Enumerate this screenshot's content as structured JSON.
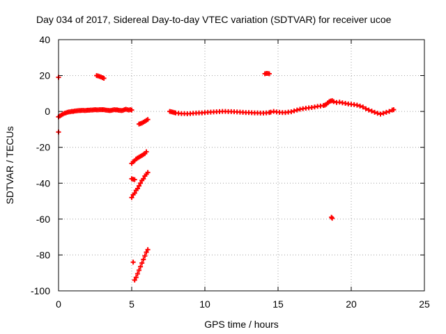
{
  "chart_data": {
    "type": "scatter",
    "title": "Day 034 of 2017, Sidereal Day-to-day VTEC variation (SDTVAR) for receiver ucoe",
    "xlabel": "GPS time / hours",
    "ylabel": "SDTVAR / TECUs",
    "xlim": [
      0,
      25
    ],
    "ylim": [
      -100,
      40
    ],
    "xticks": [
      0,
      5,
      10,
      15,
      20,
      25
    ],
    "yticks": [
      -100,
      -80,
      -60,
      -40,
      -20,
      0,
      20,
      40
    ],
    "grid": true,
    "marker_color": "#ff0000",
    "series": [
      {
        "name": "SDTVAR",
        "points": [
          [
            0.0,
            -11.5
          ],
          [
            0.0,
            19.0
          ],
          [
            0.0,
            -3.0
          ],
          [
            0.1,
            -2.5
          ],
          [
            0.2,
            -2.0
          ],
          [
            0.3,
            -1.5
          ],
          [
            0.4,
            -1.0
          ],
          [
            0.5,
            -0.8
          ],
          [
            0.6,
            -0.5
          ],
          [
            0.7,
            -0.3
          ],
          [
            0.8,
            -0.2
          ],
          [
            0.9,
            0.0
          ],
          [
            1.0,
            0.0
          ],
          [
            1.1,
            0.2
          ],
          [
            1.2,
            0.3
          ],
          [
            1.3,
            0.4
          ],
          [
            1.4,
            0.5
          ],
          [
            1.5,
            0.5
          ],
          [
            1.6,
            0.6
          ],
          [
            1.7,
            0.6
          ],
          [
            1.8,
            0.5
          ],
          [
            1.9,
            0.6
          ],
          [
            2.0,
            0.7
          ],
          [
            2.1,
            0.7
          ],
          [
            2.2,
            0.8
          ],
          [
            2.3,
            0.8
          ],
          [
            2.4,
            0.9
          ],
          [
            2.5,
            1.0
          ],
          [
            2.6,
            0.9
          ],
          [
            2.7,
            0.9
          ],
          [
            2.8,
            1.0
          ],
          [
            2.9,
            1.0
          ],
          [
            3.0,
            1.0
          ],
          [
            3.1,
            1.0
          ],
          [
            3.2,
            0.8
          ],
          [
            3.3,
            0.7
          ],
          [
            3.4,
            0.6
          ],
          [
            3.5,
            0.5
          ],
          [
            3.6,
            0.6
          ],
          [
            3.7,
            0.8
          ],
          [
            3.8,
            1.0
          ],
          [
            3.9,
            0.9
          ],
          [
            4.0,
            0.9
          ],
          [
            4.1,
            0.7
          ],
          [
            4.2,
            0.6
          ],
          [
            4.3,
            0.5
          ],
          [
            4.4,
            0.6
          ],
          [
            4.5,
            1.0
          ],
          [
            4.6,
            1.2
          ],
          [
            4.7,
            1.0
          ],
          [
            4.8,
            0.8
          ],
          [
            4.9,
            1.0
          ],
          [
            5.0,
            0.8
          ],
          [
            2.6,
            20.0
          ],
          [
            2.7,
            19.8
          ],
          [
            2.8,
            19.5
          ],
          [
            2.9,
            19.2
          ],
          [
            3.0,
            18.8
          ],
          [
            3.1,
            18.5
          ],
          [
            5.0,
            -37.5
          ],
          [
            5.1,
            -37.8
          ],
          [
            5.2,
            -38.0
          ],
          [
            5.0,
            -29.0
          ],
          [
            5.1,
            -28.0
          ],
          [
            5.2,
            -27.5
          ],
          [
            5.3,
            -26.5
          ],
          [
            5.4,
            -26.0
          ],
          [
            5.5,
            -25.5
          ],
          [
            5.6,
            -25.0
          ],
          [
            5.7,
            -24.5
          ],
          [
            5.8,
            -24.0
          ],
          [
            5.9,
            -23.5
          ],
          [
            6.0,
            -22.5
          ],
          [
            5.0,
            -48.0
          ],
          [
            5.1,
            -46.5
          ],
          [
            5.2,
            -45.5
          ],
          [
            5.3,
            -44.0
          ],
          [
            5.4,
            -43.0
          ],
          [
            5.5,
            -41.5
          ],
          [
            5.6,
            -40.0
          ],
          [
            5.7,
            -38.5
          ],
          [
            5.8,
            -37.5
          ],
          [
            5.9,
            -36.0
          ],
          [
            6.0,
            -35.0
          ],
          [
            6.1,
            -34.0
          ],
          [
            5.1,
            -84.0
          ],
          [
            5.2,
            -94.0
          ],
          [
            5.3,
            -92.5
          ],
          [
            5.4,
            -90.5
          ],
          [
            5.5,
            -88.5
          ],
          [
            5.6,
            -86.5
          ],
          [
            5.7,
            -84.5
          ],
          [
            5.8,
            -82.5
          ],
          [
            5.9,
            -80.5
          ],
          [
            6.0,
            -78.5
          ],
          [
            6.1,
            -77.0
          ],
          [
            5.5,
            -7.0
          ],
          [
            5.6,
            -6.8
          ],
          [
            5.7,
            -6.5
          ],
          [
            5.8,
            -6.0
          ],
          [
            5.9,
            -5.5
          ],
          [
            6.0,
            -5.0
          ],
          [
            6.1,
            -4.5
          ],
          [
            7.6,
            0.0
          ],
          [
            7.7,
            -0.2
          ],
          [
            7.8,
            -0.4
          ],
          [
            7.9,
            -0.6
          ],
          [
            8.0,
            -0.8
          ],
          [
            8.2,
            -1.0
          ],
          [
            8.4,
            -1.2
          ],
          [
            8.6,
            -1.2
          ],
          [
            8.8,
            -1.3
          ],
          [
            9.0,
            -1.2
          ],
          [
            9.2,
            -1.0
          ],
          [
            9.4,
            -0.9
          ],
          [
            9.6,
            -0.8
          ],
          [
            9.8,
            -0.8
          ],
          [
            10.0,
            -0.6
          ],
          [
            10.2,
            -0.5
          ],
          [
            10.4,
            -0.4
          ],
          [
            10.6,
            -0.3
          ],
          [
            10.8,
            -0.2
          ],
          [
            11.0,
            -0.1
          ],
          [
            11.2,
            0.0
          ],
          [
            11.4,
            0.0
          ],
          [
            11.6,
            -0.1
          ],
          [
            11.8,
            -0.1
          ],
          [
            12.0,
            -0.2
          ],
          [
            12.2,
            -0.3
          ],
          [
            12.4,
            -0.4
          ],
          [
            12.6,
            -0.5
          ],
          [
            12.8,
            -0.6
          ],
          [
            13.0,
            -0.6
          ],
          [
            13.2,
            -0.7
          ],
          [
            13.4,
            -0.8
          ],
          [
            13.6,
            -0.8
          ],
          [
            13.8,
            -0.9
          ],
          [
            14.0,
            -0.9
          ],
          [
            14.2,
            -0.8
          ],
          [
            14.4,
            -0.6
          ],
          [
            14.5,
            -0.4
          ],
          [
            14.1,
            21.0
          ],
          [
            14.2,
            21.2
          ],
          [
            14.3,
            21.2
          ],
          [
            14.4,
            21.0
          ],
          [
            14.7,
            0.0
          ],
          [
            14.9,
            -0.3
          ],
          [
            15.1,
            -0.5
          ],
          [
            15.3,
            -0.6
          ],
          [
            15.5,
            -0.6
          ],
          [
            15.7,
            -0.4
          ],
          [
            15.9,
            -0.2
          ],
          [
            16.1,
            0.3
          ],
          [
            16.3,
            0.8
          ],
          [
            16.5,
            1.2
          ],
          [
            16.7,
            1.5
          ],
          [
            16.9,
            1.8
          ],
          [
            17.1,
            2.0
          ],
          [
            17.3,
            2.2
          ],
          [
            17.5,
            2.5
          ],
          [
            17.7,
            2.8
          ],
          [
            17.9,
            3.0
          ],
          [
            18.1,
            3.3
          ],
          [
            18.2,
            3.5
          ],
          [
            18.3,
            4.0
          ],
          [
            18.4,
            4.8
          ],
          [
            18.5,
            5.5
          ],
          [
            18.6,
            5.8
          ],
          [
            18.7,
            6.0
          ],
          [
            18.8,
            5.5
          ],
          [
            18.65,
            -59.0
          ],
          [
            18.7,
            -59.5
          ],
          [
            19.0,
            5.0
          ],
          [
            19.2,
            5.2
          ],
          [
            19.4,
            4.8
          ],
          [
            19.6,
            4.5
          ],
          [
            19.8,
            4.2
          ],
          [
            20.0,
            4.0
          ],
          [
            20.2,
            3.8
          ],
          [
            20.4,
            3.5
          ],
          [
            20.6,
            3.0
          ],
          [
            20.8,
            2.5
          ],
          [
            21.0,
            1.5
          ],
          [
            21.2,
            0.8
          ],
          [
            21.4,
            0.2
          ],
          [
            21.6,
            -0.5
          ],
          [
            21.8,
            -1.0
          ],
          [
            22.0,
            -1.5
          ],
          [
            22.2,
            -1.0
          ],
          [
            22.4,
            -0.5
          ],
          [
            22.6,
            0.0
          ],
          [
            22.8,
            0.8
          ],
          [
            22.9,
            1.0
          ]
        ]
      }
    ]
  }
}
